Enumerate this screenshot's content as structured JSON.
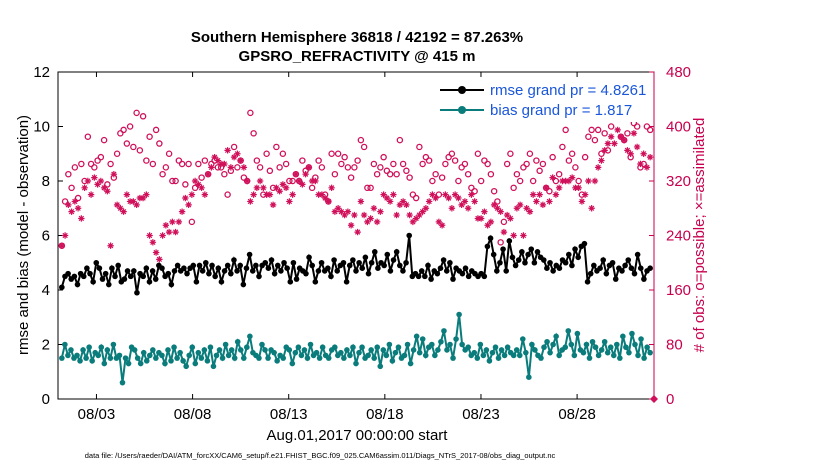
{
  "chart_data": {
    "type": "line",
    "title_line1": "Southern Hemisphere 36818 / 42192 = 87.263%",
    "title_line2": "GPSRO_REFRACTIVITY @ 415 m",
    "xlabel": "Aug.01,2017 00:00:00 start",
    "ylabel_left": "rmse and bias (model - observation)",
    "ylabel_right": "# of obs: o=possible; ×=assimilated",
    "xlim": [
      1.0,
      32.0
    ],
    "ylim_left": [
      0,
      12
    ],
    "ylim_right": [
      0,
      480
    ],
    "x_tick_labels": [
      "08/03",
      "08/08",
      "08/13",
      "08/18",
      "08/23",
      "08/28"
    ],
    "y_left_ticks": [
      "0",
      "2",
      "4",
      "6",
      "8",
      "10",
      "12"
    ],
    "y_right_ticks": [
      "0",
      "80",
      "160",
      "240",
      "320",
      "400",
      "480"
    ],
    "grid": false,
    "legend_position": "top-right",
    "legend": {
      "rmse_label": "rmse grand pr = 4.8261",
      "bias_label": "bias grand pr = 1.817"
    },
    "colors": {
      "rmse": "#000000",
      "bias": "#0a7c7c",
      "obs": "#d0105a",
      "right_axis": "#c8004f",
      "legend_text": "#1a56db"
    },
    "series": [
      {
        "name": "rmse grand pr = 4.8261",
        "axis": "left",
        "values": [
          4.1,
          4.5,
          4.6,
          4.4,
          4.5,
          4.2,
          4.6,
          4.5,
          4.8,
          4.6,
          4.3,
          5.0,
          4.8,
          4.4,
          4.6,
          4.2,
          4.8,
          4.5,
          4.9,
          4.3,
          4.4,
          4.7,
          4.5,
          4.7,
          3.9,
          4.6,
          4.5,
          4.8,
          4.3,
          4.7,
          4.4,
          4.9,
          4.8,
          4.5,
          4.6,
          4.2,
          4.7,
          4.9,
          4.7,
          4.8,
          4.6,
          4.8,
          4.9,
          4.3,
          4.9,
          4.7,
          5.0,
          4.6,
          4.9,
          4.5,
          4.8,
          4.3,
          4.7,
          4.9,
          4.6,
          5.1,
          4.7,
          4.9,
          4.2,
          4.8,
          5.3,
          4.7,
          4.9,
          4.5,
          4.9,
          5.0,
          4.8,
          5.1,
          4.6,
          4.9,
          4.7,
          5.0,
          4.8,
          4.3,
          5.0,
          4.4,
          4.8,
          4.7,
          4.6,
          5.2,
          4.9,
          4.3,
          4.7,
          5.0,
          4.7,
          4.8,
          4.5,
          5.1,
          4.7,
          4.9,
          5.0,
          4.3,
          4.9,
          5.1,
          4.7,
          5.0,
          4.8,
          5.2,
          4.6,
          5.0,
          5.4,
          4.8,
          5.0,
          4.9,
          5.3,
          4.7,
          5.1,
          5.4,
          4.9,
          4.7,
          5.0,
          6.0,
          4.5,
          4.6,
          4.5,
          4.7,
          4.5,
          4.9,
          4.4,
          4.7,
          4.6,
          4.8,
          5.1,
          4.7,
          5.0,
          4.4,
          4.8,
          4.7,
          4.6,
          4.8,
          4.5,
          4.7,
          4.6,
          4.5,
          4.6,
          4.5,
          5.6,
          5.9,
          5.3,
          4.7,
          5.0,
          5.5,
          4.7,
          5.8,
          5.2,
          4.9,
          5.1,
          5.4,
          5.0,
          5.3,
          5.5,
          5.0,
          5.4,
          5.2,
          5.1,
          4.8,
          5.0,
          4.7,
          4.9,
          4.8,
          5.1,
          5.0,
          5.3,
          4.9,
          5.5,
          5.2,
          5.6,
          5.7,
          4.3,
          4.6,
          4.9,
          4.7,
          4.8,
          5.1,
          4.6,
          4.9,
          5.0,
          4.4,
          4.8,
          4.7,
          4.9,
          5.1,
          4.8,
          4.6,
          5.3,
          4.8,
          4.4,
          4.7,
          4.8
        ],
        "marker": "dot"
      },
      {
        "name": "bias grand pr = 1.817",
        "axis": "left",
        "values": [
          1.5,
          2.0,
          1.6,
          1.8,
          1.5,
          1.6,
          1.4,
          1.8,
          1.5,
          1.9,
          1.4,
          1.7,
          1.6,
          1.9,
          1.3,
          1.8,
          1.5,
          2.0,
          1.5,
          1.6,
          0.6,
          1.5,
          1.3,
          1.9,
          1.8,
          1.5,
          1.3,
          1.7,
          1.4,
          1.6,
          1.8,
          1.5,
          1.7,
          1.6,
          1.3,
          1.8,
          1.4,
          1.9,
          1.5,
          1.7,
          1.4,
          1.2,
          1.6,
          1.9,
          1.3,
          1.7,
          1.5,
          1.8,
          1.4,
          1.9,
          1.2,
          1.6,
          1.8,
          1.5,
          2.0,
          1.6,
          1.8,
          1.5,
          2.1,
          1.8,
          1.5,
          1.9,
          2.3,
          1.7,
          1.6,
          1.5,
          2.0,
          1.8,
          1.5,
          1.8,
          1.7,
          1.4,
          1.6,
          1.5,
          1.9,
          1.8,
          1.3,
          1.7,
          1.9,
          1.6,
          1.8,
          1.5,
          2.0,
          1.6,
          1.7,
          1.5,
          1.9,
          1.6,
          1.5,
          1.8,
          1.9,
          1.6,
          1.7,
          1.5,
          1.8,
          1.6,
          1.9,
          1.3,
          1.7,
          1.9,
          1.5,
          1.6,
          1.8,
          1.5,
          1.9,
          1.2,
          1.8,
          1.6,
          2.0,
          1.4,
          1.7,
          1.9,
          1.5,
          1.6,
          2.0,
          1.3,
          1.8,
          2.3,
          1.7,
          2.2,
          1.6,
          1.9,
          2.0,
          1.6,
          1.8,
          2.1,
          2.5,
          1.8,
          2.0,
          1.5,
          2.2,
          3.1,
          2.0,
          1.8,
          1.9,
          1.6,
          1.7,
          1.5,
          2.0,
          1.6,
          1.8,
          1.4,
          1.7,
          1.9,
          1.5,
          1.8,
          1.6,
          1.9,
          1.7,
          1.6,
          1.8,
          1.6,
          2.2,
          1.7,
          0.8,
          2.0,
          1.8,
          1.6,
          1.5,
          1.9,
          2.1,
          1.7,
          2.0,
          2.3,
          1.6,
          1.8,
          1.9,
          2.5,
          2.0,
          1.6,
          2.4,
          1.8,
          1.7,
          2.0,
          1.5,
          2.1,
          1.9,
          1.6,
          1.8,
          2.1,
          1.7,
          1.9,
          1.6,
          2.0,
          1.5,
          2.3,
          1.9,
          1.7,
          2.4,
          2.0,
          1.6,
          2.2,
          1.5,
          1.9,
          1.7
        ],
        "marker": "dot"
      },
      {
        "name": "o=possible",
        "axis": "right",
        "marker": "circle",
        "values": [
          225,
          290,
          330,
          310,
          340,
          295,
          345,
          320,
          385,
          345,
          340,
          350,
          355,
          380,
          315,
          345,
          325,
          360,
          390,
          395,
          375,
          400,
          370,
          420,
          365,
          415,
          350,
          385,
          345,
          395,
          375,
          330,
          340,
          360,
          320,
          320,
          350,
          345,
          315,
          345,
          260,
          310,
          345,
          325,
          350,
          330,
          345,
          350,
          340,
          340,
          330,
          300,
          335,
          370,
          340,
          350,
          325,
          320,
          420,
          390,
          350,
          340,
          300,
          360,
          335,
          310,
          370,
          340,
          360,
          345,
          320,
          320,
          330,
          320,
          350,
          335,
          340,
          310,
          325,
          350,
          340,
          300,
          290,
          360,
          330,
          360,
          345,
          355,
          340,
          325,
          340,
          350,
          380,
          370,
          310,
          310,
          345,
          330,
          340,
          355,
          335,
          330,
          345,
          330,
          380,
          345,
          335,
          325,
          300,
          295,
          370,
          345,
          355,
          350,
          320,
          330,
          300,
          325,
          345,
          355,
          360,
          350,
          320,
          340,
          345,
          330,
          310,
          305,
          360,
          320,
          350,
          345,
          330,
          305,
          290,
          230,
          260,
          345,
          360,
          310,
          330,
          320,
          340,
          345,
          360,
          320,
          350,
          335,
          345,
          310,
          305,
          355,
          320,
          330,
          370,
          395,
          350,
          360,
          340,
          320,
          300,
          355,
          385,
          395,
          380,
          395,
          360,
          390,
          365,
          400,
          415,
          420,
          385,
          380,
          390,
          355,
          405,
          400,
          340,
          345,
          400,
          395
        ],
        "note_x_values": "evenly spaced over xlim"
      },
      {
        "name": "×=assimilated",
        "axis": "right",
        "marker": "asterisk",
        "values": [
          225,
          240,
          285,
          275,
          290,
          280,
          265,
          310,
          320,
          300,
          325,
          315,
          320,
          310,
          305,
          225,
          330,
          285,
          280,
          275,
          300,
          290,
          290,
          285,
          295,
          295,
          300,
          240,
          230,
          215,
          205,
          240,
          255,
          245,
          260,
          245,
          260,
          275,
          295,
          285,
          300,
          320,
          315,
          310,
          300,
          330,
          340,
          355,
          350,
          345,
          345,
          365,
          340,
          355,
          360,
          350,
          340,
          320,
          290,
          300,
          310,
          320,
          310,
          300,
          300,
          285,
          310,
          305,
          315,
          310,
          290,
          300,
          330,
          320,
          315,
          330,
          340,
          320,
          320,
          300,
          300,
          295,
          290,
          310,
          275,
          280,
          275,
          270,
          275,
          255,
          270,
          245,
          290,
          270,
          260,
          265,
          280,
          260,
          275,
          300,
          295,
          290,
          300,
          270,
          285,
          290,
          285,
          270,
          260,
          265,
          270,
          275,
          280,
          290,
          300,
          295,
          260,
          255,
          300,
          295,
          280,
          300,
          295,
          285,
          290,
          280,
          300,
          290,
          265,
          265,
          275,
          255,
          260,
          285,
          280,
          275,
          245,
          270,
          265,
          240,
          280,
          285,
          240,
          280,
          275,
          300,
          290,
          300,
          285,
          310,
          290,
          325,
          300,
          310,
          320,
          320,
          320,
          325,
          310,
          310,
          290,
          300,
          320,
          280,
          320,
          340,
          350,
          365,
          375,
          385,
          375,
          395,
          385,
          380,
          365,
          360,
          390,
          370,
          345,
          360,
          340,
          355
        ],
        "note_x_values": "evenly spaced over xlim"
      }
    ]
  },
  "footer": "data file: /Users/raeder/DAI/ATM_forcXX/CAM6_setup/f.e21.FHIST_BGC.f09_025.CAM6assim.011/Diags_NTrS_2017-08/obs_diag_output.nc"
}
